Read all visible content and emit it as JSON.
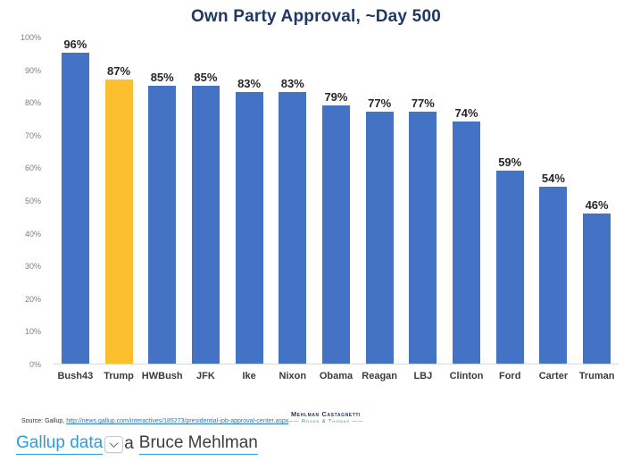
{
  "title": "Own Party Approval, ~Day 500",
  "chart_data": {
    "type": "bar",
    "title": "Own Party Approval, ~Day 500",
    "categories": [
      "Bush43",
      "Trump",
      "HWBush",
      "JFK",
      "Ike",
      "Nixon",
      "Obama",
      "Reagan",
      "LBJ",
      "Clinton",
      "Ford",
      "Carter",
      "Truman"
    ],
    "values": [
      96,
      87,
      85,
      85,
      83,
      83,
      79,
      77,
      77,
      74,
      59,
      54,
      46
    ],
    "bar_labels": [
      "96%",
      "87%",
      "85%",
      "85%",
      "83%",
      "83%",
      "79%",
      "77%",
      "77%",
      "74%",
      "59%",
      "54%",
      "46%"
    ],
    "highlight_index": 1,
    "xlabel": "",
    "ylabel": "",
    "ylim": [
      0,
      100
    ],
    "ytick_step": 10,
    "ytick_labels": [
      "0%",
      "10%",
      "20%",
      "30%",
      "40%",
      "50%",
      "60%",
      "70%",
      "80%",
      "90%",
      "100%"
    ],
    "grid": false,
    "legend": "none",
    "colors": {
      "bar": "#4472C4",
      "highlight": "#FCBF2D",
      "title": "#1F3864",
      "bar_label": "#262626",
      "axis_label": "#7F7F7F",
      "category_label": "#3B3B3B",
      "baseline": "#D9D9D9"
    }
  },
  "source_line": {
    "prefix": "Source: Gallup, ",
    "link": "http://news.gallup.com/interactives/185273/presidential-job-approval-center.aspx"
  },
  "logo": {
    "line1": "Mehlman Castagnetti",
    "line2": "Rosen & Thomas"
  },
  "caption": {
    "link_text": "Gallup data",
    "after_button_text": "a",
    "author_link_text": "Bruce Mehlman"
  }
}
